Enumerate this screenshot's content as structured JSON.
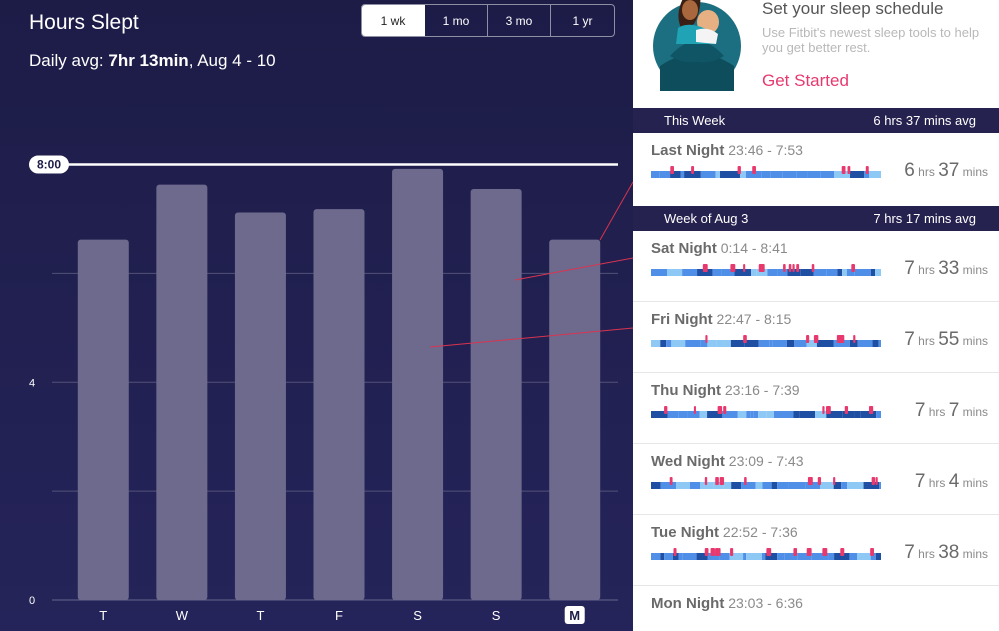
{
  "chart": {
    "title": "Hours Slept",
    "avg_label": "Daily avg: ",
    "avg_value": "7hr 13min",
    "avg_range": ", Aug 4 - 10",
    "goal_label": "8:00"
  },
  "range_tabs": [
    {
      "label": "1 wk",
      "active": true
    },
    {
      "label": "1 mo",
      "active": false
    },
    {
      "label": "3 mo",
      "active": false
    },
    {
      "label": "1 yr",
      "active": false
    }
  ],
  "chart_data": {
    "type": "bar",
    "categories": [
      "T",
      "W",
      "T",
      "F",
      "S",
      "S",
      "M"
    ],
    "highlighted_category_index": 6,
    "values": [
      6.62,
      7.63,
      7.12,
      7.18,
      7.92,
      7.55,
      6.62
    ],
    "goal": 8,
    "ylim": [
      0,
      8.8
    ],
    "y_ticks": [
      "0",
      "4"
    ],
    "gridlines": [
      2,
      4,
      6
    ],
    "bar_color": "#6e6a8e",
    "title": "Hours Slept",
    "xlabel": "",
    "ylabel": ""
  },
  "promo": {
    "title": "Set your sleep schedule",
    "body": "Use Fitbit's newest sleep tools to help you get better rest.",
    "cta": "Get Started"
  },
  "colors": {
    "accent": "#e8396f",
    "header_bg": "#26224f",
    "deep": "#1f4fa3",
    "light": "#4f8fe8",
    "rem": "#8ec8f5",
    "awake": "#e8396f"
  },
  "weeks": [
    {
      "label": "This Week",
      "avg": "6 hrs 37 mins avg",
      "nights": [
        {
          "name": "Last Night",
          "time": " 23:46  - 7:53",
          "hrs": "6",
          "mins": "37",
          "seed": 3
        }
      ]
    },
    {
      "label": "Week of Aug 3",
      "avg": "7 hrs 17 mins avg",
      "nights": [
        {
          "name": "Sat Night",
          "time": " 0:14  - 8:41",
          "hrs": "7",
          "mins": "33",
          "seed": 7
        },
        {
          "name": "Fri Night",
          "time": " 22:47  - 8:15",
          "hrs": "7",
          "mins": "55",
          "seed": 11
        },
        {
          "name": "Thu Night",
          "time": " 23:16  - 7:39",
          "hrs": "7",
          "mins": "7",
          "seed": 17
        },
        {
          "name": "Wed Night",
          "time": " 23:09  - 7:43",
          "hrs": "7",
          "mins": "4",
          "seed": 23
        },
        {
          "name": "Tue Night",
          "time": " 22:52  - 7:36",
          "hrs": "7",
          "mins": "38",
          "seed": 29
        },
        {
          "name": "Mon Night",
          "time": " 23:03  - 6:36",
          "hrs": "",
          "mins": "",
          "seed": 31
        }
      ]
    }
  ],
  "labels": {
    "hrs": " hrs ",
    "mins": " mins"
  }
}
